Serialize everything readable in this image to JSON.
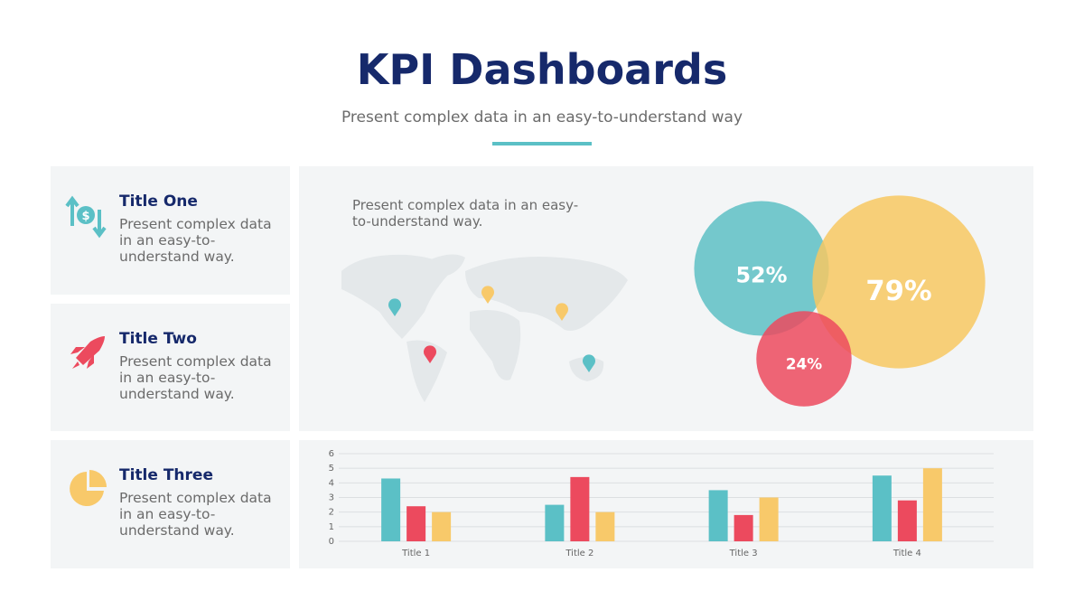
{
  "header": {
    "title": "KPI Dashboards",
    "subtitle": "Present complex data in an easy-to-understand way"
  },
  "cards": [
    {
      "title": "Title One",
      "text": "Present complex data in an easy-to-understand way."
    },
    {
      "title": "Title Two",
      "text": "Present complex data in an easy-to-understand way."
    },
    {
      "title": "Title Three",
      "text": "Present complex data in an easy-to-understand way."
    }
  ],
  "map_panel": {
    "text": "Present complex data in an easy-to-understand way."
  },
  "chart_data": [
    {
      "type": "bubble",
      "values": [
        52,
        79,
        24
      ],
      "value_labels": [
        "52%",
        "79%",
        "24%"
      ],
      "colors": [
        "#5dbfc4",
        "#f7c862",
        "#ec4a5e"
      ]
    },
    {
      "type": "bar",
      "categories": [
        "Title 1",
        "Title 2",
        "Title 3",
        "Title 4"
      ],
      "series": [
        {
          "color": "#5bc0c6",
          "values": [
            4.3,
            2.5,
            3.5,
            4.5
          ]
        },
        {
          "color": "#ec4a5e",
          "values": [
            2.4,
            4.4,
            1.8,
            2.8
          ]
        },
        {
          "color": "#f8c96a",
          "values": [
            2.0,
            2.0,
            3.0,
            5.0
          ]
        }
      ],
      "ylim": [
        0,
        6
      ],
      "yticks": [
        0,
        1,
        2,
        3,
        4,
        5,
        6
      ],
      "grid": true
    }
  ]
}
